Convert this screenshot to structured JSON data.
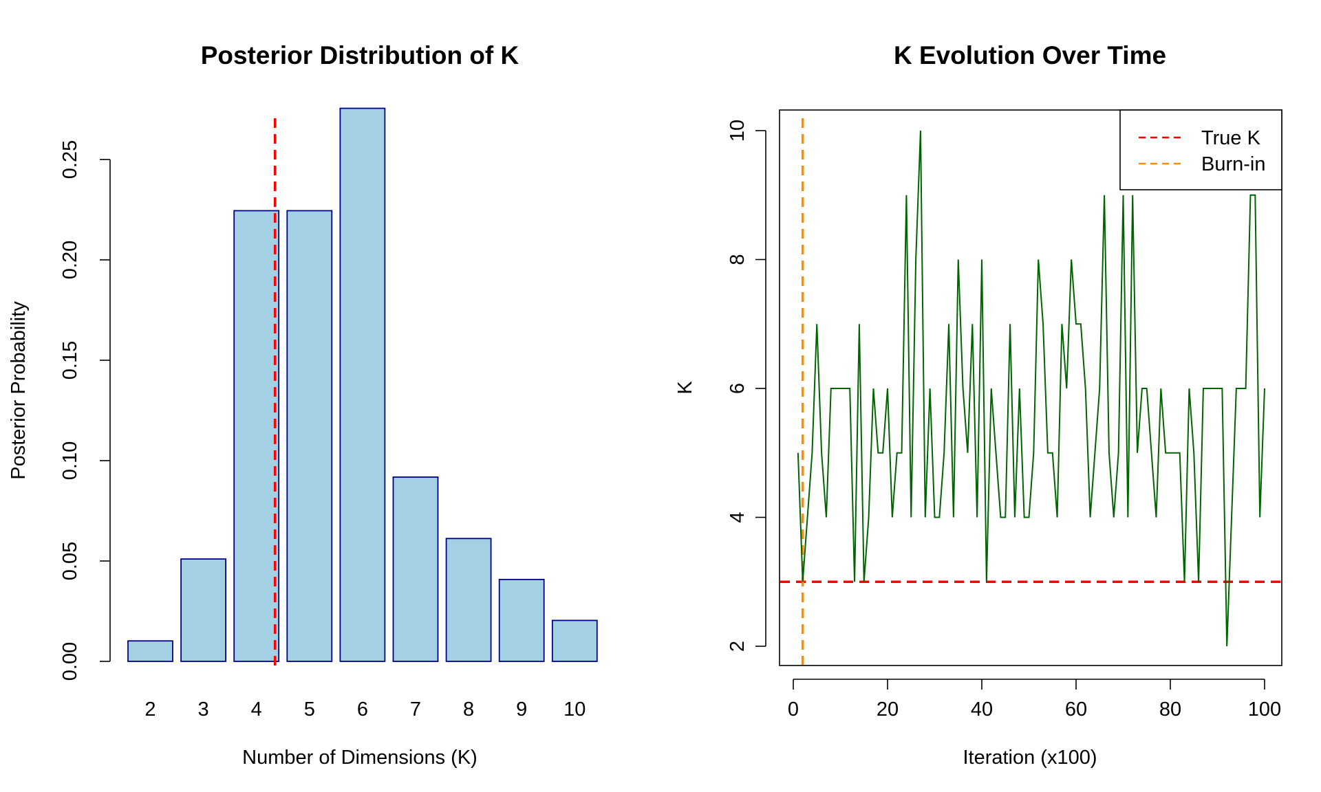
{
  "chart_data": [
    {
      "type": "bar",
      "title": "Posterior Distribution of K",
      "xlabel": "Number of Dimensions (K)",
      "ylabel": "Posterior Probability",
      "categories": [
        "2",
        "3",
        "4",
        "5",
        "6",
        "7",
        "8",
        "9",
        "10"
      ],
      "values": [
        0.0102,
        0.051,
        0.2245,
        0.2245,
        0.2755,
        0.0918,
        0.0612,
        0.0408,
        0.0204
      ],
      "ylim": [
        0,
        0.275
      ],
      "yticks": [
        "0.00",
        "0.05",
        "0.10",
        "0.15",
        "0.20",
        "0.25"
      ],
      "ref_line": {
        "category_position": 4.35,
        "color": "#ff0000",
        "style": "dashed"
      },
      "bar_fill": "#a3d0e3",
      "bar_stroke": "#00008b"
    },
    {
      "type": "line",
      "title": "K Evolution Over Time",
      "xlabel": "Iteration (x100)",
      "ylabel": "K",
      "x": [
        1,
        2,
        3,
        4,
        5,
        6,
        7,
        8,
        9,
        10,
        11,
        12,
        13,
        14,
        15,
        16,
        17,
        18,
        19,
        20,
        21,
        22,
        23,
        24,
        25,
        26,
        27,
        28,
        29,
        30,
        31,
        32,
        33,
        34,
        35,
        36,
        37,
        38,
        39,
        40,
        41,
        42,
        43,
        44,
        45,
        46,
        47,
        48,
        49,
        50,
        51,
        52,
        53,
        54,
        55,
        56,
        57,
        58,
        59,
        60,
        61,
        62,
        63,
        64,
        65,
        66,
        67,
        68,
        69,
        70,
        71,
        72,
        73,
        74,
        75,
        76,
        77,
        78,
        79,
        80,
        81,
        82,
        83,
        84,
        85,
        86,
        87,
        88,
        89,
        90,
        91,
        92,
        93,
        94,
        95,
        96,
        97,
        98,
        99,
        100
      ],
      "y": [
        5,
        3,
        4,
        5,
        7,
        5,
        4,
        6,
        6,
        6,
        6,
        6,
        3,
        7,
        3,
        4,
        6,
        5,
        5,
        6,
        4,
        5,
        5,
        9,
        4,
        8,
        10,
        4,
        6,
        4,
        4,
        5,
        7,
        4,
        8,
        6,
        5,
        7,
        4,
        8,
        3,
        6,
        5,
        4,
        4,
        7,
        4,
        6,
        4,
        4,
        5,
        8,
        7,
        5,
        5,
        4,
        7,
        6,
        8,
        7,
        7,
        6,
        4,
        5,
        6,
        9,
        5,
        4,
        5,
        9,
        4,
        9,
        5,
        6,
        6,
        5,
        4,
        6,
        5,
        5,
        5,
        5,
        3,
        6,
        5,
        3,
        6,
        6,
        6,
        6,
        6,
        2,
        4,
        6,
        6,
        6,
        9,
        9,
        4,
        6
      ],
      "xlim": [
        -2,
        105
      ],
      "ylim": [
        1.7,
        10.3
      ],
      "xticks": [
        "0",
        "20",
        "40",
        "60",
        "80",
        "100"
      ],
      "yticks": [
        "2",
        "4",
        "6",
        "8",
        "10"
      ],
      "series_color": "#006400",
      "hlines": [
        {
          "y": 3,
          "color": "#ff0000",
          "style": "dashed"
        }
      ],
      "vlines": [
        {
          "x": 2,
          "color": "#ff8c00",
          "style": "dashed"
        }
      ],
      "legend": {
        "position": "top-right",
        "entries": [
          {
            "label": "True K",
            "color": "#ff0000"
          },
          {
            "label": "Burn-in",
            "color": "#ff8c00"
          }
        ]
      }
    }
  ]
}
